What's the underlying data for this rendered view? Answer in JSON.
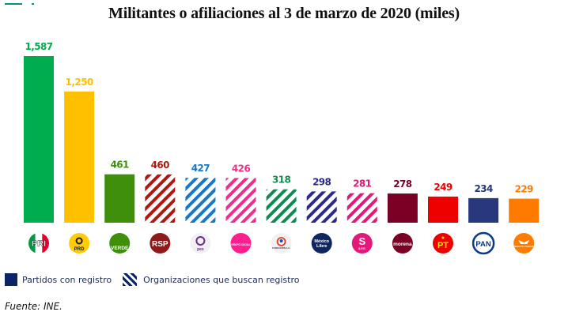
{
  "chart_data": {
    "type": "bar",
    "title": "Militantes o afiliaciones al 3 de marzo de 2020 (miles)",
    "xlabel": "",
    "ylabel": "",
    "ylim": [
      0,
      1587
    ],
    "grid": false,
    "categories": [
      "PRI",
      "PRD",
      "VERDE",
      "RSP",
      "pes",
      "Grupo Social Promotor de México",
      "Fundación Alternativa A.C.",
      "México Libre",
      "A.F.E.",
      "morena",
      "PT",
      "PAN",
      "Movimiento Ciudadano"
    ],
    "values": [
      1587,
      1250,
      461,
      460,
      427,
      426,
      318,
      298,
      281,
      278,
      249,
      234,
      229
    ],
    "value_labels": [
      "1,587",
      "1,250",
      "461",
      "460",
      "427",
      "426",
      "318",
      "298",
      "281",
      "278",
      "249",
      "234",
      "229"
    ],
    "colors": [
      "#00ad4e",
      "#ffc000",
      "#3f8f0a",
      "#b0170f",
      "#1678c8",
      "#ee2d8c",
      "#0e8c50",
      "#2b2a8c",
      "#e3187a",
      "#7a0026",
      "#ee0000",
      "#27387f",
      "#ff7b00"
    ],
    "hatched": [
      false,
      false,
      false,
      true,
      true,
      true,
      true,
      true,
      true,
      false,
      false,
      false,
      false
    ],
    "series_groups": {
      "Partidos con registro": [
        "PRI",
        "PRD",
        "VERDE",
        "morena",
        "PT",
        "PAN",
        "Movimiento Ciudadano"
      ],
      "Organizaciones que buscan registro": [
        "RSP",
        "pes",
        "Grupo Social Promotor de México",
        "Fundación Alternativa A.C.",
        "México Libre",
        "A.F.E."
      ]
    },
    "legend": {
      "placement": "bottom-left",
      "entries": [
        {
          "label": "Partidos con registro",
          "style": "solid"
        },
        {
          "label": "Organizaciones que buscan registro",
          "style": "hatched"
        }
      ]
    }
  },
  "logos": [
    {
      "icon": "pri-logo-icon",
      "text": "PRI",
      "bg": "#ffffff"
    },
    {
      "icon": "prd-logo-icon",
      "text": "PRD",
      "bg": "#ffcb05"
    },
    {
      "icon": "verde-logo-icon",
      "text": "VERDE",
      "bg": "#3f8f0a"
    },
    {
      "icon": "rsp-logo-icon",
      "text": "RSP",
      "bg": "#8e1b1b"
    },
    {
      "icon": "pes-logo-icon",
      "text": "pes",
      "bg": "#f1f1f3"
    },
    {
      "icon": "grupo-social-logo-icon",
      "text": "GRUPO SOCIAL",
      "bg": "#ff1f8f"
    },
    {
      "icon": "fundacion-logo-icon",
      "text": "FUNDACIÓN A.C.",
      "bg": "#f1f1f1"
    },
    {
      "icon": "mexico-libre-logo-icon",
      "text": "México Libre",
      "bg": "#0f2660"
    },
    {
      "icon": "afe-logo-icon",
      "text": "A.F.E.",
      "bg": "#e3187a"
    },
    {
      "icon": "morena-logo-icon",
      "text": "morena",
      "bg": "#7a0026"
    },
    {
      "icon": "pt-logo-icon",
      "text": "PT",
      "bg": "#ee0000"
    },
    {
      "icon": "pan-logo-icon",
      "text": "PAN",
      "bg": "#ffffff"
    },
    {
      "icon": "mc-logo-icon",
      "text": "MOVIMIENTO CIUDADANO",
      "bg": "#ff7b00"
    }
  ],
  "legend": {
    "solid_label": "Partidos con registro",
    "hatched_label": "Organizaciones que buscan registro"
  },
  "source": "Fuente: INE."
}
